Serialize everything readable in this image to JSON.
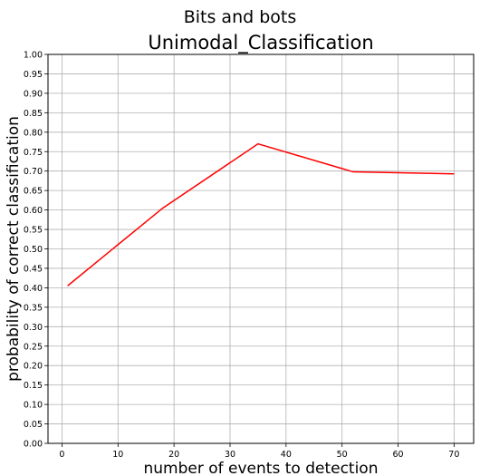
{
  "chart_data": {
    "type": "line",
    "suptitle": "Bits and bots",
    "title": "Unimodal_Classification",
    "xlabel": "number of events to detection",
    "ylabel": "probability of correct classification",
    "xlim": [
      -2.5,
      73.5
    ],
    "ylim": [
      0.0,
      1.0
    ],
    "x_ticks": [
      0,
      10,
      20,
      30,
      40,
      50,
      60,
      70
    ],
    "y_ticks": [
      0.0,
      0.05,
      0.1,
      0.15,
      0.2,
      0.25,
      0.3,
      0.35,
      0.4,
      0.45,
      0.5,
      0.55,
      0.6,
      0.65,
      0.7,
      0.75,
      0.8,
      0.85,
      0.9,
      0.95,
      1.0
    ],
    "grid": true,
    "series": [
      {
        "color": "#ff0000",
        "x": [
          1,
          18,
          35,
          52,
          70
        ],
        "y": [
          0.405,
          0.605,
          0.77,
          0.698,
          0.693
        ]
      }
    ]
  }
}
